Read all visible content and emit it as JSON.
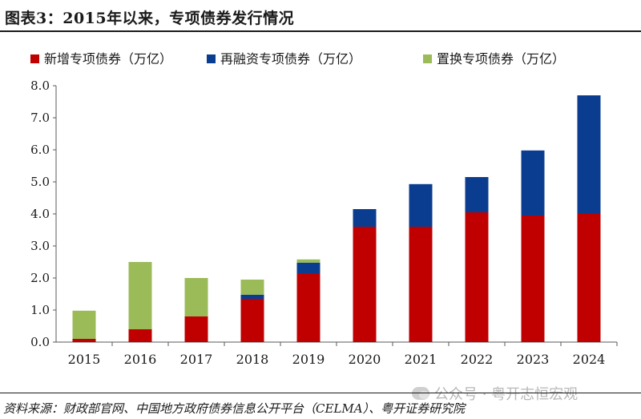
{
  "title": "图表3：2015年以来，专项债券发行情况",
  "source": "资料来源：财政部官网、中国地方政府债券信息公开平台（CELMA）、粤开证券研究院",
  "watermark": "公众号 · 粤开志恒宏观",
  "colors": {
    "new": "#c00000",
    "refinance": "#0a3d8f",
    "swap": "#9bbb59",
    "axis": "#595959"
  },
  "chart_data": {
    "type": "bar",
    "stacked": true,
    "categories": [
      "2015",
      "2016",
      "2017",
      "2018",
      "2019",
      "2020",
      "2021",
      "2022",
      "2023",
      "2024"
    ],
    "series": [
      {
        "name": "新增专项债券（万亿）",
        "color": "#c00000",
        "values": [
          0.1,
          0.4,
          0.8,
          1.35,
          2.15,
          3.6,
          3.6,
          4.05,
          3.95,
          4.0
        ]
      },
      {
        "name": "再融资专项债券（万亿）",
        "color": "#0a3d8f",
        "values": [
          0.0,
          0.0,
          0.0,
          0.13,
          0.33,
          0.55,
          1.33,
          1.1,
          2.03,
          3.7
        ]
      },
      {
        "name": "置换专项债券（万亿）",
        "color": "#9bbb59",
        "values": [
          0.88,
          2.1,
          1.2,
          0.47,
          0.1,
          0.0,
          0.0,
          0.0,
          0.0,
          0.0
        ]
      }
    ],
    "y_ticks": [
      "0.0",
      "1.0",
      "2.0",
      "3.0",
      "4.0",
      "5.0",
      "6.0",
      "7.0",
      "8.0"
    ],
    "ylim": [
      0,
      8
    ],
    "legend": "top",
    "grid": false
  }
}
